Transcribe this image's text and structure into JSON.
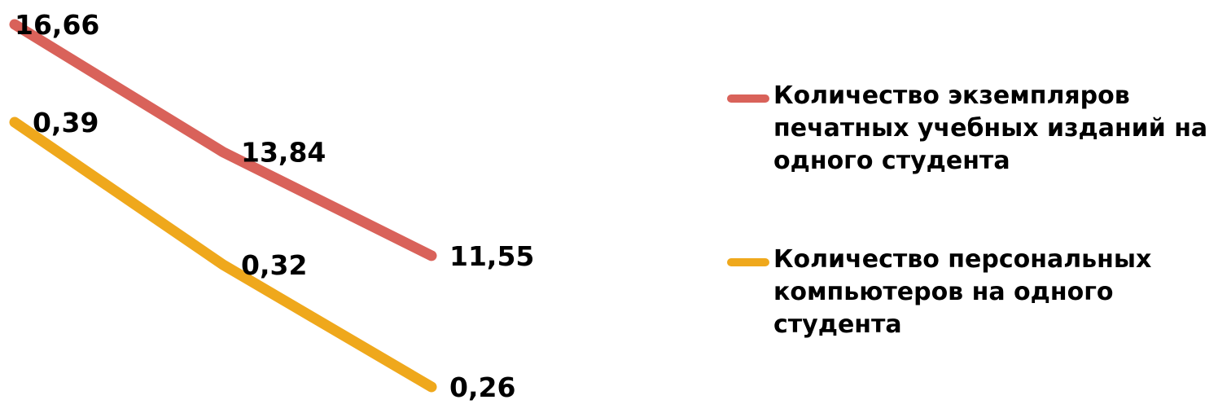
{
  "chart_data": {
    "type": "line",
    "categories": [
      null,
      null,
      null
    ],
    "series": [
      {
        "name": "Количество экземпляров печатных учебных изданий на одного студента",
        "color": "#d9625a",
        "values": [
          16.66,
          13.84,
          11.55
        ],
        "value_labels": [
          "16,66",
          "13,84",
          "11,55"
        ]
      },
      {
        "name": "Количество персональных компьютеров на одного студента",
        "color": "#efa81c",
        "values": [
          0.39,
          0.32,
          0.26
        ],
        "value_labels": [
          "0,39",
          "0,32",
          "0,26"
        ],
        "axis": "y2"
      }
    ],
    "ylim": [
      8.2,
      17.2
    ],
    "y2lim": [
      0.25,
      0.45
    ],
    "legend": "right"
  }
}
